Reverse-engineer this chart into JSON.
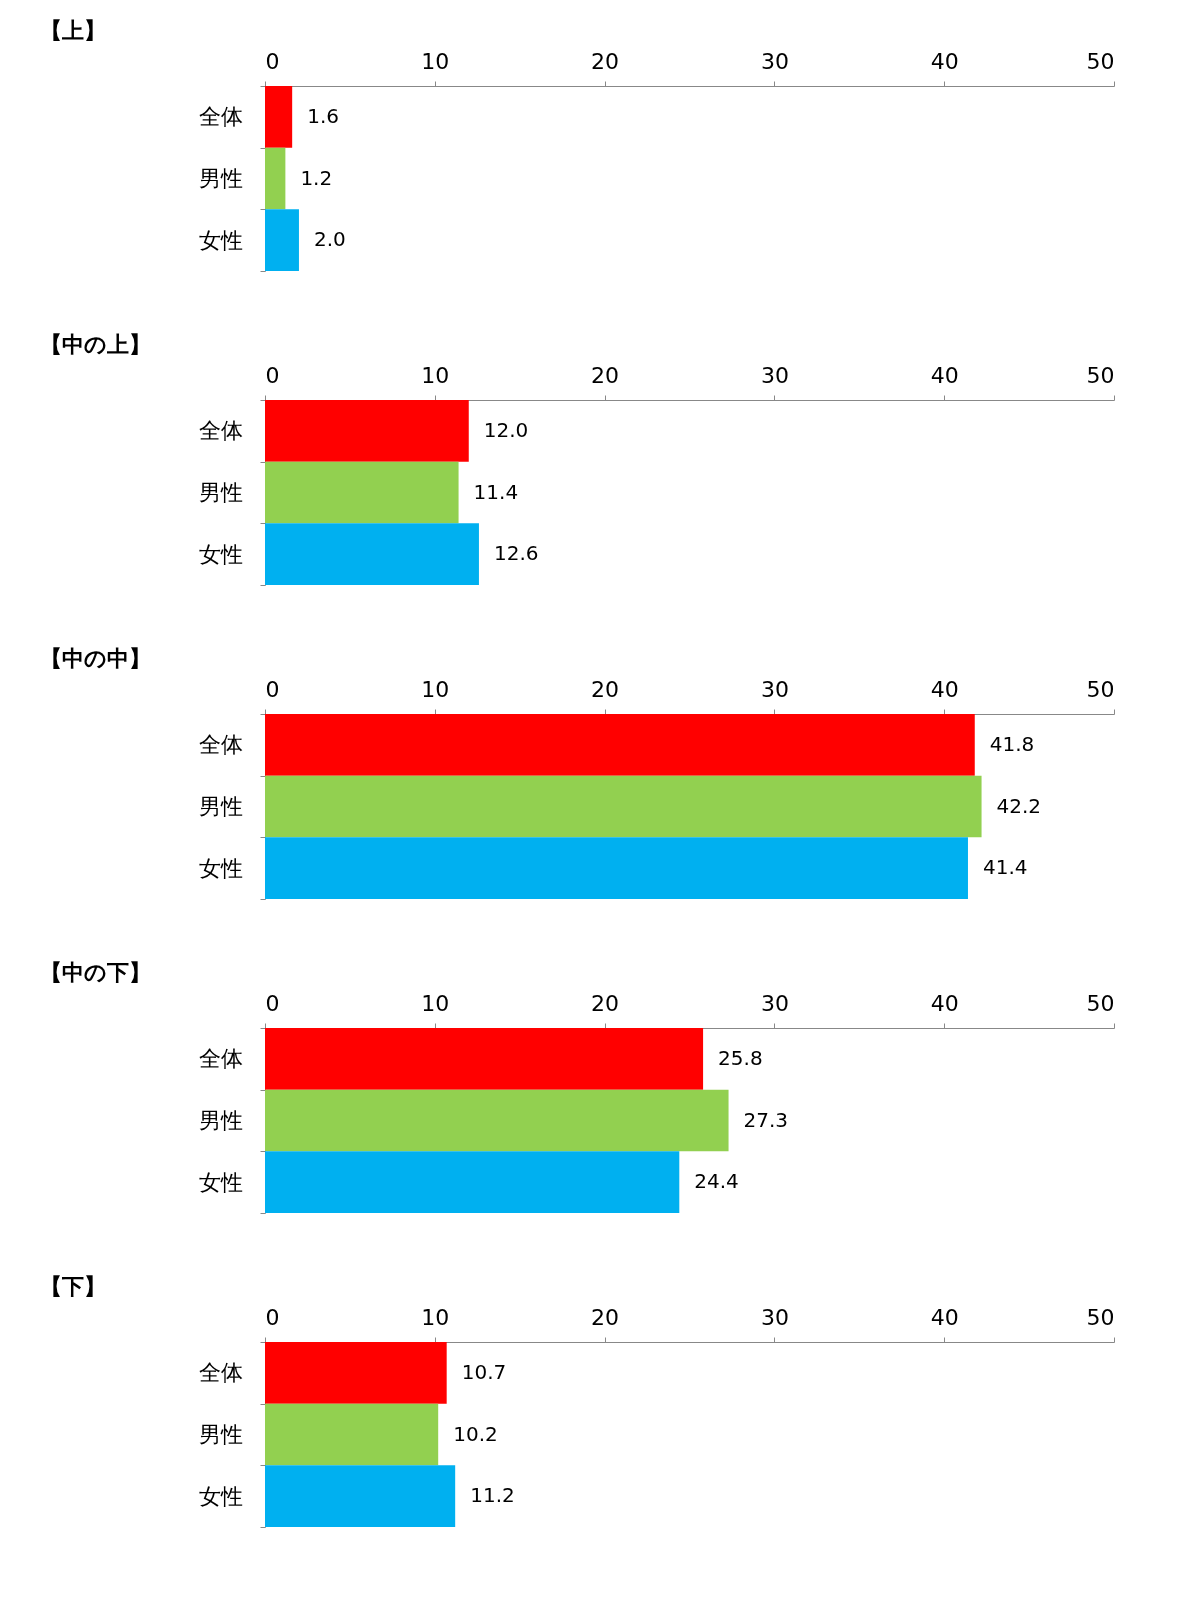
{
  "chart_data": [
    {
      "type": "bar",
      "orientation": "horizontal",
      "title": "【上】",
      "categories": [
        "全体",
        "男性",
        "女性"
      ],
      "values": [
        1.6,
        1.2,
        2.0
      ],
      "value_labels": [
        "1.6",
        "1.2",
        "2.0"
      ],
      "colors": [
        "#ff0000",
        "#92d050",
        "#00b0f0"
      ],
      "xlim": [
        0,
        50
      ],
      "xticks": [
        0,
        10,
        20,
        30,
        40,
        50
      ]
    },
    {
      "type": "bar",
      "orientation": "horizontal",
      "title": "【中の上】",
      "categories": [
        "全体",
        "男性",
        "女性"
      ],
      "values": [
        12.0,
        11.4,
        12.6
      ],
      "value_labels": [
        "12.0",
        "11.4",
        "12.6"
      ],
      "colors": [
        "#ff0000",
        "#92d050",
        "#00b0f0"
      ],
      "xlim": [
        0,
        50
      ],
      "xticks": [
        0,
        10,
        20,
        30,
        40,
        50
      ]
    },
    {
      "type": "bar",
      "orientation": "horizontal",
      "title": "【中の中】",
      "categories": [
        "全体",
        "男性",
        "女性"
      ],
      "values": [
        41.8,
        42.2,
        41.4
      ],
      "value_labels": [
        "41.8",
        "42.2",
        "41.4"
      ],
      "colors": [
        "#ff0000",
        "#92d050",
        "#00b0f0"
      ],
      "xlim": [
        0,
        50
      ],
      "xticks": [
        0,
        10,
        20,
        30,
        40,
        50
      ]
    },
    {
      "type": "bar",
      "orientation": "horizontal",
      "title": "【中の下】",
      "categories": [
        "全体",
        "男性",
        "女性"
      ],
      "values": [
        25.8,
        27.3,
        24.4
      ],
      "value_labels": [
        "25.8",
        "27.3",
        "24.4"
      ],
      "colors": [
        "#ff0000",
        "#92d050",
        "#00b0f0"
      ],
      "xlim": [
        0,
        50
      ],
      "xticks": [
        0,
        10,
        20,
        30,
        40,
        50
      ]
    },
    {
      "type": "bar",
      "orientation": "horizontal",
      "title": "【下】",
      "categories": [
        "全体",
        "男性",
        "女性"
      ],
      "values": [
        10.7,
        10.2,
        11.2
      ],
      "value_labels": [
        "10.7",
        "10.2",
        "11.2"
      ],
      "colors": [
        "#ff0000",
        "#92d050",
        "#00b0f0"
      ],
      "xlim": [
        0,
        50
      ],
      "xticks": [
        0,
        10,
        20,
        30,
        40,
        50
      ]
    }
  ]
}
